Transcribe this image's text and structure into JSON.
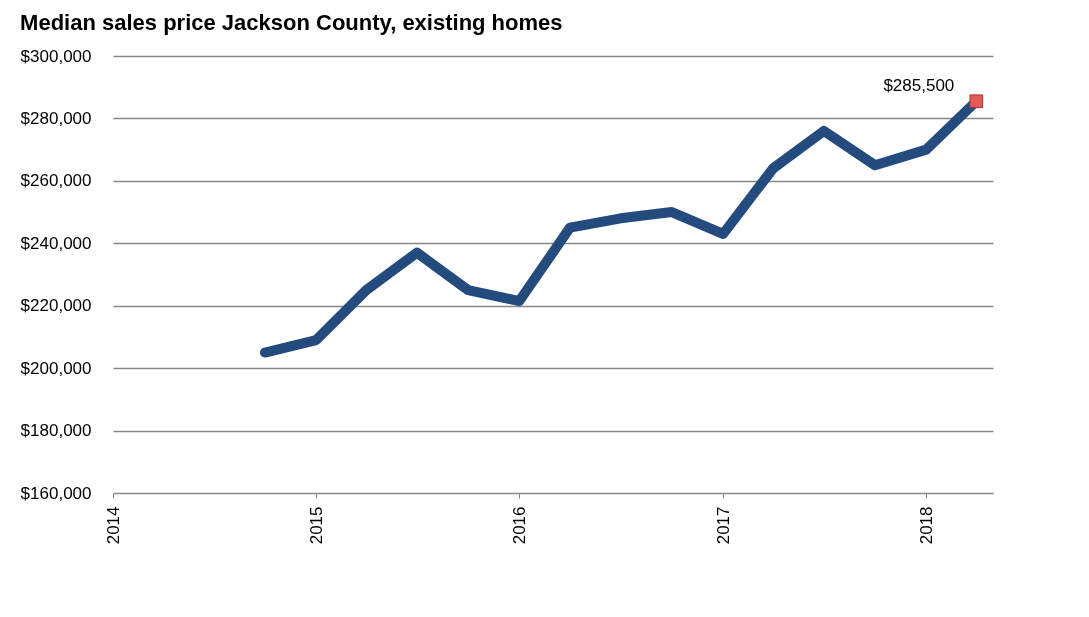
{
  "chart_data": {
    "type": "line",
    "title": "Median sales price Jackson County, existing homes",
    "x": [
      "2014-10-01",
      "2015-01-01",
      "2015-04-01",
      "2015-07-01",
      "2015-10-01",
      "2016-01-01",
      "2016-04-01",
      "2016-07-01",
      "2016-10-01",
      "2017-01-01",
      "2017-04-01",
      "2017-07-01",
      "2017-10-01",
      "2018-01-01",
      "2018-04-01"
    ],
    "series": [
      {
        "type": "line",
        "color": "#234b7d",
        "marker": "none",
        "values": [
          205000,
          209000,
          225000,
          237000,
          225000,
          221500,
          245000,
          248000,
          250000,
          243000,
          264000,
          276000,
          265000,
          270000,
          285500
        ]
      },
      {
        "type": "scatter",
        "color": "#e05a5a",
        "marker": "square",
        "x": [
          "2018-04-01"
        ],
        "values": [
          285500
        ]
      }
    ],
    "xlim": [
      "2014-01-01",
      "2018-05-01"
    ],
    "xticks": [
      "2014",
      "2015",
      "2016",
      "2017",
      "2018"
    ],
    "ylim": [
      160000,
      300000
    ],
    "yticks": [
      {
        "value": 160000,
        "label": "$160,000"
      },
      {
        "value": 180000,
        "label": "$180,000"
      },
      {
        "value": 200000,
        "label": "$200,000"
      },
      {
        "value": 220000,
        "label": "$220,000"
      },
      {
        "value": 240000,
        "label": "$240,000"
      },
      {
        "value": 260000,
        "label": "$260,000"
      },
      {
        "value": 280000,
        "label": "$280,000"
      },
      {
        "value": 300000,
        "label": "$300,000"
      }
    ],
    "grid": "y",
    "annotations": [
      {
        "text": "$285,500",
        "x": "2018-04-01",
        "y": 285500
      }
    ]
  }
}
